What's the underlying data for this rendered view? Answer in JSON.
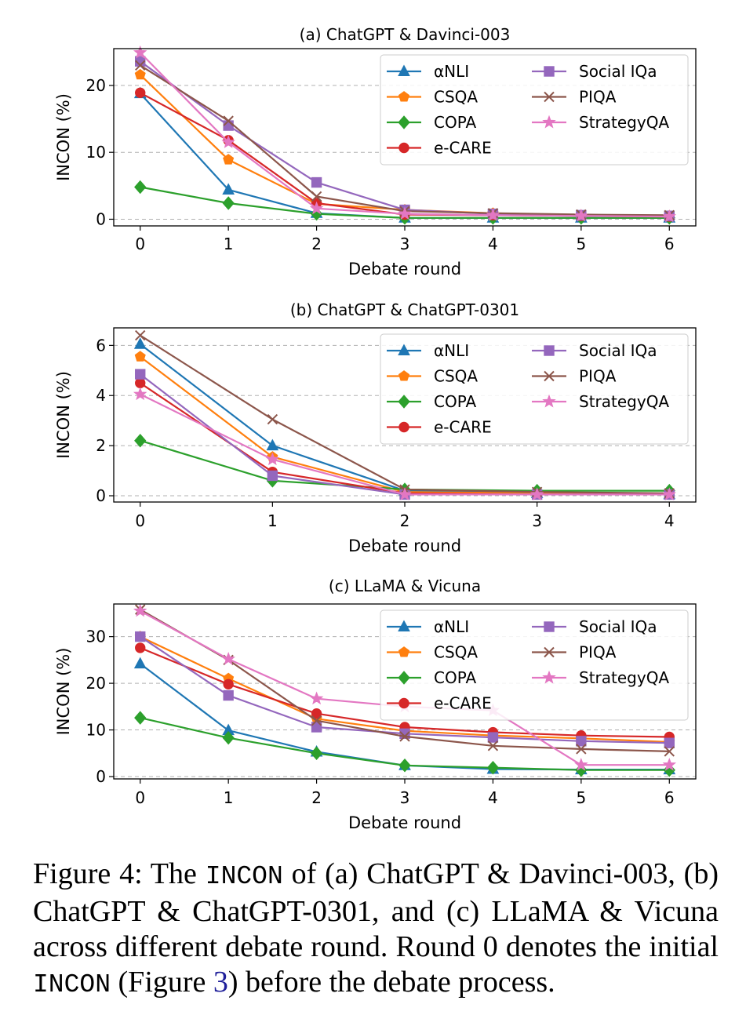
{
  "colors": {
    "aNLI": "#1f77b4",
    "CSQA": "#ff7f0e",
    "COPA": "#2ca02c",
    "eCARE": "#d62728",
    "SocialIQa": "#9467bd",
    "PIQA": "#8c564b",
    "StrategyQA": "#e377c2"
  },
  "chart_data": [
    {
      "type": "line",
      "title": "(a) ChatGPT & Davinci-003",
      "xlabel": "Debate round",
      "ylabel": "INCON (%)",
      "x": [
        0,
        1,
        2,
        3,
        4,
        5,
        6
      ],
      "xlim": [
        -0.3,
        6.3
      ],
      "ylim": [
        -1,
        25.5
      ],
      "yticks": [
        0,
        10,
        20
      ],
      "grid": "horizontal-dashed",
      "legend": "top-right",
      "series": [
        {
          "name": "αNLI",
          "key": "aNLI",
          "marker": "triangle",
          "values": [
            18.8,
            4.4,
            0.9,
            0.2,
            0.2,
            0.2,
            0.2
          ]
        },
        {
          "name": "CSQA",
          "key": "CSQA",
          "marker": "pentagon",
          "values": [
            21.6,
            8.9,
            2.3,
            1.4,
            0.9,
            0.6,
            0.5
          ]
        },
        {
          "name": "COPA",
          "key": "COPA",
          "marker": "diamond",
          "values": [
            4.8,
            2.4,
            0.8,
            0.2,
            0.2,
            0.2,
            0.2
          ]
        },
        {
          "name": "e-CARE",
          "key": "eCARE",
          "marker": "circle",
          "values": [
            18.9,
            11.8,
            2.4,
            0.7,
            0.6,
            0.5,
            0.4
          ]
        },
        {
          "name": "Social IQa",
          "key": "SocialIQa",
          "marker": "square",
          "values": [
            23.6,
            14.0,
            5.5,
            1.4,
            0.8,
            0.6,
            0.5
          ]
        },
        {
          "name": "PIQA",
          "key": "PIQA",
          "marker": "x",
          "values": [
            23.0,
            14.7,
            3.4,
            1.2,
            0.9,
            0.7,
            0.6
          ]
        },
        {
          "name": "StrategyQA",
          "key": "StrategyQA",
          "marker": "star",
          "values": [
            24.9,
            11.5,
            1.6,
            0.8,
            0.6,
            0.5,
            0.4
          ]
        }
      ]
    },
    {
      "type": "line",
      "title": "(b) ChatGPT & ChatGPT-0301",
      "xlabel": "Debate round",
      "ylabel": "INCON (%)",
      "x": [
        0,
        1,
        2,
        3,
        4
      ],
      "xlim": [
        -0.2,
        4.2
      ],
      "ylim": [
        -0.25,
        6.7
      ],
      "yticks": [
        0,
        2,
        4,
        6
      ],
      "grid": "horizontal-dashed",
      "legend": "top-right",
      "series": [
        {
          "name": "αNLI",
          "key": "aNLI",
          "marker": "triangle",
          "values": [
            6.05,
            2.0,
            0.2,
            0.1,
            0.05
          ]
        },
        {
          "name": "CSQA",
          "key": "CSQA",
          "marker": "pentagon",
          "values": [
            5.55,
            1.55,
            0.15,
            0.1,
            0.05
          ]
        },
        {
          "name": "COPA",
          "key": "COPA",
          "marker": "diamond",
          "values": [
            2.2,
            0.6,
            0.25,
            0.2,
            0.2
          ]
        },
        {
          "name": "e-CARE",
          "key": "eCARE",
          "marker": "circle",
          "values": [
            4.5,
            0.95,
            0.1,
            0.05,
            0.05
          ]
        },
        {
          "name": "Social IQa",
          "key": "SocialIQa",
          "marker": "square",
          "values": [
            4.85,
            0.8,
            0.05,
            0.05,
            0.05
          ]
        },
        {
          "name": "PIQA",
          "key": "PIQA",
          "marker": "x",
          "values": [
            6.4,
            3.05,
            0.25,
            0.15,
            0.1
          ]
        },
        {
          "name": "StrategyQA",
          "key": "StrategyQA",
          "marker": "star",
          "values": [
            4.05,
            1.45,
            0.05,
            0.05,
            0.05
          ]
        }
      ]
    },
    {
      "type": "line",
      "title": "(c) LLaMA & Vicuna",
      "xlabel": "Debate round",
      "ylabel": "INCON (%)",
      "x": [
        0,
        1,
        2,
        3,
        4,
        5,
        6
      ],
      "xlim": [
        -0.3,
        6.3
      ],
      "ylim": [
        -0.5,
        37
      ],
      "yticks": [
        0,
        10,
        20,
        30
      ],
      "grid": "horizontal-dashed",
      "legend": "top-right",
      "series": [
        {
          "name": "αNLI",
          "key": "aNLI",
          "marker": "triangle",
          "values": [
            24.2,
            9.9,
            5.3,
            2.4,
            1.6,
            1.5,
            1.5
          ]
        },
        {
          "name": "CSQA",
          "key": "CSQA",
          "marker": "pentagon",
          "values": [
            30.0,
            21.0,
            12.4,
            9.8,
            8.8,
            8.2,
            7.4
          ]
        },
        {
          "name": "COPA",
          "key": "COPA",
          "marker": "diamond",
          "values": [
            12.6,
            8.3,
            5.0,
            2.4,
            1.9,
            1.4,
            1.4
          ]
        },
        {
          "name": "e-CARE",
          "key": "eCARE",
          "marker": "circle",
          "values": [
            27.6,
            19.8,
            13.5,
            10.6,
            9.5,
            8.8,
            8.5
          ]
        },
        {
          "name": "Social IQa",
          "key": "SocialIQa",
          "marker": "square",
          "values": [
            30.0,
            17.4,
            10.6,
            9.2,
            8.4,
            7.6,
            7.2
          ]
        },
        {
          "name": "PIQA",
          "key": "PIQA",
          "marker": "x",
          "values": [
            35.8,
            25.0,
            12.0,
            8.6,
            6.6,
            5.9,
            5.4
          ]
        },
        {
          "name": "StrategyQA",
          "key": "StrategyQA",
          "marker": "star",
          "values": [
            35.5,
            25.2,
            16.7,
            15.0,
            14.2,
            2.5,
            2.5
          ]
        }
      ]
    }
  ],
  "caption": {
    "lead": "Figure 4: The ",
    "incon_1": "INCON",
    "mid": " of (a) ChatGPT & Davinci-003, (b) ChatGPT & ChatGPT-0301, and (c) LLaMA & Vicuna across different debate round. Round 0 denotes the initial ",
    "incon_2": "INCON",
    "ref_open": " (Figure ",
    "ref_num": "3",
    "tail": ") before the debate process."
  }
}
